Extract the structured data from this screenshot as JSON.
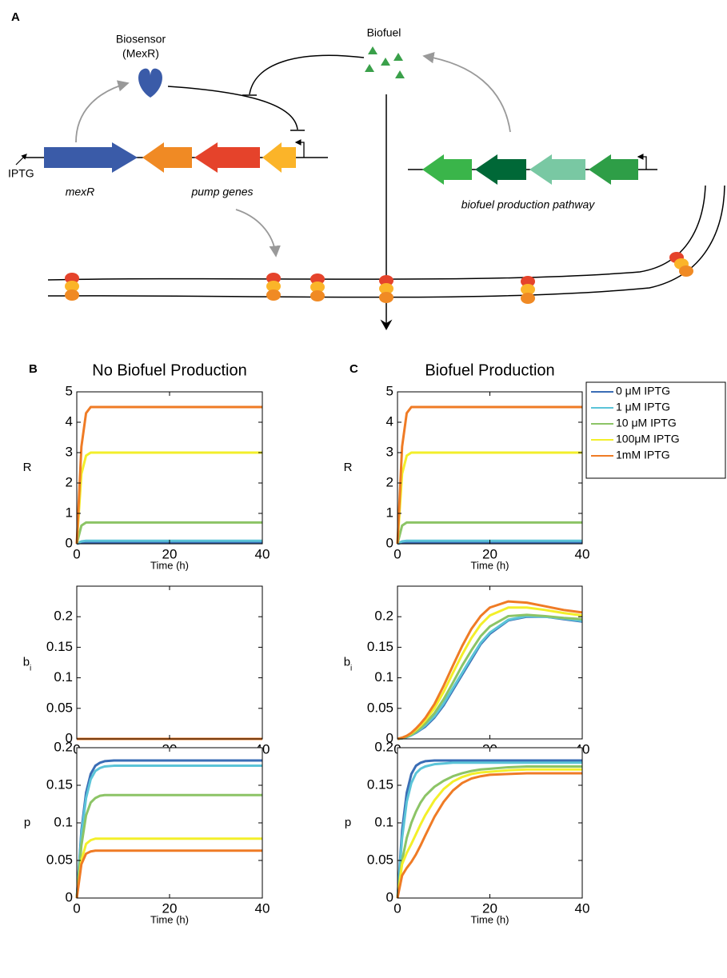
{
  "diagram": {
    "panel": "A",
    "biosensor": "Biosensor",
    "biosensor_protein": "(MexR)",
    "biofuel": "Biofuel",
    "inducer": "IPTG",
    "regulator_gene": "mexR",
    "pump_genes": "pump genes",
    "pathway": "biofuel production pathway"
  },
  "chart_data": [
    {
      "type": "line",
      "panel": "B",
      "title": "No Biofuel Production",
      "ylabel": "R",
      "xlabel": "Time (h)",
      "x": [
        0,
        1,
        2,
        3,
        4,
        5,
        6,
        8,
        10,
        12,
        14,
        16,
        18,
        20,
        24,
        28,
        32,
        36,
        40
      ],
      "xlim": [
        0,
        40
      ],
      "xticks": [
        0,
        20,
        40
      ],
      "ylim": [
        0,
        5
      ],
      "yticks": [
        0,
        1,
        2,
        3,
        4,
        5
      ],
      "series": [
        {
          "color": "#3a6db5",
          "values": [
            0,
            0.04,
            0.05,
            0.05,
            0.05,
            0.05,
            0.05,
            0.05,
            0.05,
            0.05,
            0.05,
            0.05,
            0.05,
            0.05,
            0.05,
            0.05,
            0.05,
            0.05,
            0.05
          ]
        },
        {
          "color": "#5bc4d8",
          "values": [
            0,
            0.08,
            0.1,
            0.1,
            0.1,
            0.1,
            0.1,
            0.1,
            0.1,
            0.1,
            0.1,
            0.1,
            0.1,
            0.1,
            0.1,
            0.1,
            0.1,
            0.1,
            0.1
          ]
        },
        {
          "color": "#8cc466",
          "values": [
            0,
            0.6,
            0.7,
            0.7,
            0.7,
            0.7,
            0.7,
            0.7,
            0.7,
            0.7,
            0.7,
            0.7,
            0.7,
            0.7,
            0.7,
            0.7,
            0.7,
            0.7,
            0.7
          ]
        },
        {
          "color": "#f3ef2a",
          "values": [
            0,
            2.3,
            2.9,
            3,
            3,
            3,
            3,
            3,
            3,
            3,
            3,
            3,
            3,
            3,
            3,
            3,
            3,
            3,
            3
          ]
        },
        {
          "color": "#ef7b25",
          "values": [
            0,
            3.2,
            4.3,
            4.5,
            4.5,
            4.5,
            4.5,
            4.5,
            4.5,
            4.5,
            4.5,
            4.5,
            4.5,
            4.5,
            4.5,
            4.5,
            4.5,
            4.5,
            4.5
          ]
        }
      ]
    },
    {
      "type": "line",
      "panel": "C",
      "title": "Biofuel Production",
      "ylabel": "R",
      "xlabel": "Time (h)",
      "legend": "right",
      "x": [
        0,
        1,
        2,
        3,
        4,
        5,
        6,
        8,
        10,
        12,
        14,
        16,
        18,
        20,
        24,
        28,
        32,
        36,
        40
      ],
      "xlim": [
        0,
        40
      ],
      "xticks": [
        0,
        20,
        40
      ],
      "ylim": [
        0,
        5
      ],
      "yticks": [
        0,
        1,
        2,
        3,
        4,
        5
      ],
      "series": [
        {
          "name": "0 μM IPTG",
          "color": "#3a6db5",
          "values": [
            0,
            0.04,
            0.05,
            0.05,
            0.05,
            0.05,
            0.05,
            0.05,
            0.05,
            0.05,
            0.05,
            0.05,
            0.05,
            0.05,
            0.05,
            0.05,
            0.05,
            0.05,
            0.05
          ]
        },
        {
          "name": "1 μM IPTG",
          "color": "#5bc4d8",
          "values": [
            0,
            0.08,
            0.1,
            0.1,
            0.1,
            0.1,
            0.1,
            0.1,
            0.1,
            0.1,
            0.1,
            0.1,
            0.1,
            0.1,
            0.1,
            0.1,
            0.1,
            0.1,
            0.1
          ]
        },
        {
          "name": "10 μM IPTG",
          "color": "#8cc466",
          "values": [
            0,
            0.6,
            0.7,
            0.7,
            0.7,
            0.7,
            0.7,
            0.7,
            0.7,
            0.7,
            0.7,
            0.7,
            0.7,
            0.7,
            0.7,
            0.7,
            0.7,
            0.7,
            0.7
          ]
        },
        {
          "name": "100μM IPTG",
          "color": "#f3ef2a",
          "values": [
            0,
            2.3,
            2.9,
            3,
            3,
            3,
            3,
            3,
            3,
            3,
            3,
            3,
            3,
            3,
            3,
            3,
            3,
            3,
            3
          ]
        },
        {
          "name": "1mM IPTG",
          "color": "#ef7b25",
          "values": [
            0,
            3.2,
            4.3,
            4.5,
            4.5,
            4.5,
            4.5,
            4.5,
            4.5,
            4.5,
            4.5,
            4.5,
            4.5,
            4.5,
            4.5,
            4.5,
            4.5,
            4.5,
            4.5
          ]
        }
      ]
    },
    {
      "type": "line",
      "ylabel": "b",
      "ylabel_subscript": "i",
      "xlabel": "Time (h)",
      "x": [
        0,
        1,
        2,
        3,
        4,
        5,
        6,
        8,
        10,
        12,
        14,
        16,
        18,
        20,
        24,
        28,
        32,
        36,
        40
      ],
      "xlim": [
        0,
        40
      ],
      "xticks": [
        0,
        20,
        40
      ],
      "ylim": [
        0,
        0.25
      ],
      "yticks": [
        0,
        0.05,
        0.1,
        0.15,
        0.2
      ],
      "series": [
        {
          "color": "#3a6db5",
          "values": [
            0,
            0,
            0,
            0,
            0,
            0,
            0,
            0,
            0,
            0,
            0,
            0,
            0,
            0,
            0,
            0,
            0,
            0,
            0
          ]
        },
        {
          "color": "#5bc4d8",
          "values": [
            0,
            0,
            0,
            0,
            0,
            0,
            0,
            0,
            0,
            0,
            0,
            0,
            0,
            0,
            0,
            0,
            0,
            0,
            0
          ]
        },
        {
          "color": "#8cc466",
          "values": [
            0,
            0,
            0,
            0,
            0,
            0,
            0,
            0,
            0,
            0,
            0,
            0,
            0,
            0,
            0,
            0,
            0,
            0,
            0
          ]
        },
        {
          "color": "#f3ef2a",
          "values": [
            0,
            0,
            0,
            0,
            0,
            0,
            0,
            0,
            0,
            0,
            0,
            0,
            0,
            0,
            0,
            0,
            0,
            0,
            0
          ]
        },
        {
          "color": "#ef7b25",
          "values": [
            0,
            0,
            0,
            0,
            0,
            0,
            0,
            0,
            0,
            0,
            0,
            0,
            0,
            0,
            0,
            0,
            0,
            0,
            0
          ]
        }
      ]
    },
    {
      "type": "line",
      "ylabel": "b",
      "ylabel_subscript": "i",
      "xlabel": "Time (h)",
      "x": [
        0,
        1,
        2,
        3,
        4,
        5,
        6,
        8,
        10,
        12,
        14,
        16,
        18,
        20,
        24,
        28,
        32,
        36,
        40
      ],
      "xlim": [
        0,
        40
      ],
      "xticks": [
        0,
        20,
        40
      ],
      "ylim": [
        0,
        0.25
      ],
      "yticks": [
        0,
        0.05,
        0.1,
        0.15,
        0.2
      ],
      "series": [
        {
          "color": "#3a6db5",
          "values": [
            0,
            0.001,
            0.003,
            0.006,
            0.01,
            0.015,
            0.02,
            0.035,
            0.055,
            0.08,
            0.105,
            0.13,
            0.155,
            0.172,
            0.194,
            0.2,
            0.2,
            0.196,
            0.192
          ]
        },
        {
          "color": "#5bc4d8",
          "values": [
            0,
            0.001,
            0.003,
            0.006,
            0.011,
            0.016,
            0.022,
            0.037,
            0.058,
            0.083,
            0.108,
            0.133,
            0.157,
            0.174,
            0.195,
            0.201,
            0.2,
            0.197,
            0.193
          ]
        },
        {
          "color": "#8cc466",
          "values": [
            0,
            0.001,
            0.004,
            0.007,
            0.012,
            0.018,
            0.025,
            0.042,
            0.065,
            0.092,
            0.12,
            0.145,
            0.168,
            0.184,
            0.201,
            0.203,
            0.201,
            0.198,
            0.196
          ]
        },
        {
          "color": "#f3ef2a",
          "values": [
            0,
            0.002,
            0.005,
            0.009,
            0.015,
            0.022,
            0.03,
            0.05,
            0.077,
            0.108,
            0.138,
            0.165,
            0.187,
            0.202,
            0.215,
            0.215,
            0.211,
            0.206,
            0.202
          ]
        },
        {
          "color": "#ef7b25",
          "values": [
            0,
            0.002,
            0.005,
            0.01,
            0.017,
            0.025,
            0.034,
            0.057,
            0.087,
            0.12,
            0.152,
            0.18,
            0.201,
            0.215,
            0.225,
            0.223,
            0.217,
            0.211,
            0.207
          ]
        }
      ]
    },
    {
      "type": "line",
      "ylabel": "p",
      "xlabel": "Time (h)",
      "x": [
        0,
        1,
        2,
        3,
        4,
        5,
        6,
        8,
        10,
        12,
        14,
        16,
        18,
        20,
        24,
        28,
        32,
        36,
        40
      ],
      "xlim": [
        0,
        40
      ],
      "xticks": [
        0,
        20,
        40
      ],
      "ylim": [
        0,
        0.2
      ],
      "yticks": [
        0,
        0.05,
        0.1,
        0.15,
        0.2
      ],
      "series": [
        {
          "color": "#3a6db5",
          "values": [
            0,
            0.09,
            0.14,
            0.165,
            0.176,
            0.18,
            0.182,
            0.183,
            0.183,
            0.183,
            0.183,
            0.183,
            0.183,
            0.183,
            0.183,
            0.183,
            0.183,
            0.183,
            0.183
          ]
        },
        {
          "color": "#5bc4d8",
          "values": [
            0,
            0.085,
            0.133,
            0.158,
            0.169,
            0.173,
            0.175,
            0.176,
            0.176,
            0.176,
            0.176,
            0.176,
            0.176,
            0.176,
            0.176,
            0.176,
            0.176,
            0.176,
            0.176
          ]
        },
        {
          "color": "#8cc466",
          "values": [
            0,
            0.07,
            0.11,
            0.127,
            0.133,
            0.136,
            0.137,
            0.137,
            0.137,
            0.137,
            0.137,
            0.137,
            0.137,
            0.137,
            0.137,
            0.137,
            0.137,
            0.137,
            0.137
          ]
        },
        {
          "color": "#f3ef2a",
          "values": [
            0,
            0.05,
            0.072,
            0.077,
            0.079,
            0.079,
            0.079,
            0.079,
            0.079,
            0.079,
            0.079,
            0.079,
            0.079,
            0.079,
            0.079,
            0.079,
            0.079,
            0.079,
            0.079
          ]
        },
        {
          "color": "#ef7b25",
          "values": [
            0,
            0.045,
            0.059,
            0.062,
            0.063,
            0.063,
            0.063,
            0.063,
            0.063,
            0.063,
            0.063,
            0.063,
            0.063,
            0.063,
            0.063,
            0.063,
            0.063,
            0.063,
            0.063
          ]
        }
      ]
    },
    {
      "type": "line",
      "ylabel": "p",
      "xlabel": "Time (h)",
      "x": [
        0,
        1,
        2,
        3,
        4,
        5,
        6,
        8,
        10,
        12,
        14,
        16,
        18,
        20,
        24,
        28,
        32,
        36,
        40
      ],
      "xlim": [
        0,
        40
      ],
      "xticks": [
        0,
        20,
        40
      ],
      "ylim": [
        0,
        0.2
      ],
      "yticks": [
        0,
        0.05,
        0.1,
        0.15,
        0.2
      ],
      "series": [
        {
          "color": "#3a6db5",
          "values": [
            0,
            0.09,
            0.14,
            0.165,
            0.176,
            0.18,
            0.182,
            0.183,
            0.183,
            0.183,
            0.183,
            0.183,
            0.183,
            0.183,
            0.183,
            0.183,
            0.183,
            0.183,
            0.183
          ]
        },
        {
          "color": "#5bc4d8",
          "values": [
            0,
            0.08,
            0.128,
            0.153,
            0.166,
            0.172,
            0.175,
            0.178,
            0.179,
            0.18,
            0.18,
            0.18,
            0.18,
            0.18,
            0.18,
            0.18,
            0.18,
            0.18,
            0.18
          ]
        },
        {
          "color": "#8cc466",
          "values": [
            0,
            0.05,
            0.08,
            0.1,
            0.115,
            0.127,
            0.136,
            0.148,
            0.156,
            0.162,
            0.166,
            0.169,
            0.171,
            0.172,
            0.174,
            0.175,
            0.175,
            0.175,
            0.175
          ]
        },
        {
          "color": "#f3ef2a",
          "values": [
            0,
            0.045,
            0.06,
            0.072,
            0.085,
            0.098,
            0.11,
            0.13,
            0.145,
            0.155,
            0.161,
            0.165,
            0.167,
            0.168,
            0.17,
            0.171,
            0.171,
            0.171,
            0.171
          ]
        },
        {
          "color": "#ef7b25",
          "values": [
            0,
            0.03,
            0.04,
            0.048,
            0.058,
            0.07,
            0.083,
            0.108,
            0.128,
            0.143,
            0.153,
            0.159,
            0.162,
            0.164,
            0.165,
            0.166,
            0.166,
            0.166,
            0.166
          ]
        }
      ]
    }
  ]
}
